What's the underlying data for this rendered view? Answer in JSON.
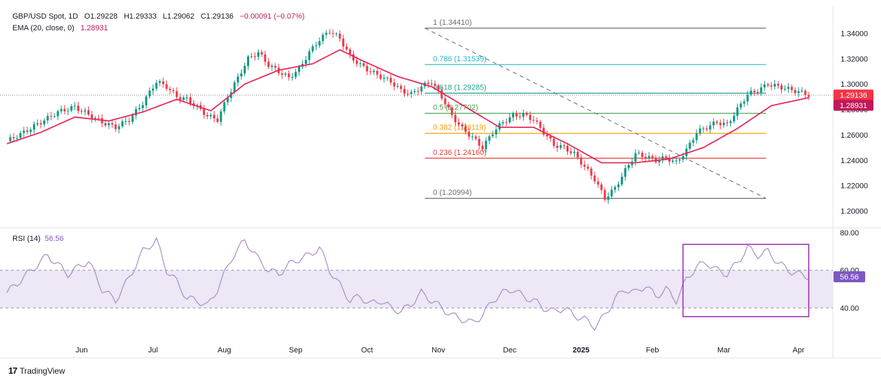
{
  "header": {
    "symbol": "GBP/USD Spot, 1D",
    "open": "O1.29228",
    "high": "H1.29333",
    "low": "L1.29062",
    "close": "C1.29136",
    "change": "−0.00091 (−0.07%)",
    "ema_label": "EMA (20, close, 0)",
    "ema_value": "1.28931"
  },
  "rsi": {
    "label": "RSI (14)",
    "value": "56.56"
  },
  "brand": "TradingView",
  "colors": {
    "up": "#089981",
    "down": "#f23645",
    "ema": "#e5285a",
    "rsi": "#a98bc6",
    "rsi_band": "#ede7f6",
    "rsi_box": "#9c27b0",
    "fib_0786": "#22b8c8",
    "fib_0618": "#22a390",
    "fib_05": "#43a047",
    "fib_0382": "#f5a000",
    "fib_0236": "#e53935",
    "fib_extreme": "#6d6d6d"
  },
  "chart_data": {
    "type": "candlestick",
    "price_axis": {
      "min": 1.19,
      "max": 1.35,
      "ticks": [
        "1.20000",
        "1.22000",
        "1.24000",
        "1.26000",
        "1.28000",
        "1.30000",
        "1.32000",
        "1.34000"
      ]
    },
    "last_price": "1.29136",
    "ema_last": "1.28931",
    "x_axis_labels": [
      "Jun",
      "Jul",
      "Aug",
      "Sep",
      "Oct",
      "Nov",
      "Dec",
      "2025",
      "Feb",
      "Mar",
      "Apr"
    ],
    "fibonacci": [
      {
        "level": "1",
        "price": 1.3441,
        "label": "1 (1.34410)"
      },
      {
        "level": "0.786",
        "price": 1.31539,
        "label": "0.786 (1.31539)"
      },
      {
        "level": "0.618",
        "price": 1.29285,
        "label": "0.618 (1.29285)"
      },
      {
        "level": "0.5",
        "price": 1.27702,
        "label": "0.5 (1.27702)"
      },
      {
        "level": "0.382",
        "price": 1.26119,
        "label": "0.382 (1.26119)"
      },
      {
        "level": "0.236",
        "price": 1.2416,
        "label": "0.236 (1.24160)"
      },
      {
        "level": "0",
        "price": 1.20994,
        "label": "0 (1.20994)"
      }
    ],
    "price_path": [
      [
        0,
        1.255
      ],
      [
        5,
        1.262
      ],
      [
        10,
        1.27
      ],
      [
        15,
        1.278
      ],
      [
        20,
        1.282
      ],
      [
        24,
        1.276
      ],
      [
        28,
        1.27
      ],
      [
        32,
        1.266
      ],
      [
        36,
        1.272
      ],
      [
        40,
        1.285
      ],
      [
        44,
        1.302
      ],
      [
        47,
        1.298
      ],
      [
        50,
        1.29
      ],
      [
        53,
        1.288
      ],
      [
        56,
        1.282
      ],
      [
        59,
        1.275
      ],
      [
        62,
        1.272
      ],
      [
        65,
        1.29
      ],
      [
        68,
        1.305
      ],
      [
        71,
        1.32
      ],
      [
        74,
        1.325
      ],
      [
        77,
        1.315
      ],
      [
        80,
        1.31
      ],
      [
        83,
        1.305
      ],
      [
        86,
        1.312
      ],
      [
        89,
        1.325
      ],
      [
        92,
        1.335
      ],
      [
        95,
        1.342
      ],
      [
        98,
        1.336
      ],
      [
        101,
        1.322
      ],
      [
        104,
        1.315
      ],
      [
        107,
        1.31
      ],
      [
        110,
        1.306
      ],
      [
        113,
        1.302
      ],
      [
        116,
        1.295
      ],
      [
        119,
        1.292
      ],
      [
        122,
        1.298
      ],
      [
        125,
        1.302
      ],
      [
        128,
        1.29
      ],
      [
        131,
        1.275
      ],
      [
        134,
        1.265
      ],
      [
        137,
        1.258
      ],
      [
        140,
        1.25
      ],
      [
        143,
        1.262
      ],
      [
        146,
        1.27
      ],
      [
        149,
        1.275
      ],
      [
        152,
        1.276
      ],
      [
        155,
        1.272
      ],
      [
        158,
        1.262
      ],
      [
        161,
        1.252
      ],
      [
        164,
        1.25
      ],
      [
        167,
        1.245
      ],
      [
        170,
        1.235
      ],
      [
        173,
        1.225
      ],
      [
        176,
        1.21
      ],
      [
        179,
        1.218
      ],
      [
        182,
        1.232
      ],
      [
        185,
        1.245
      ],
      [
        188,
        1.243
      ],
      [
        191,
        1.24
      ],
      [
        194,
        1.242
      ],
      [
        197,
        1.238
      ],
      [
        200,
        1.248
      ],
      [
        203,
        1.262
      ],
      [
        206,
        1.266
      ],
      [
        209,
        1.27
      ],
      [
        212,
        1.268
      ],
      [
        215,
        1.28
      ],
      [
        218,
        1.292
      ],
      [
        221,
        1.295
      ],
      [
        224,
        1.3
      ],
      [
        227,
        1.298
      ],
      [
        230,
        1.296
      ],
      [
        233,
        1.294
      ],
      [
        236,
        1.2914
      ]
    ],
    "ema_path": [
      [
        0,
        1.253
      ],
      [
        10,
        1.262
      ],
      [
        20,
        1.274
      ],
      [
        30,
        1.271
      ],
      [
        40,
        1.278
      ],
      [
        50,
        1.288
      ],
      [
        60,
        1.279
      ],
      [
        70,
        1.3
      ],
      [
        80,
        1.311
      ],
      [
        90,
        1.316
      ],
      [
        98,
        1.327
      ],
      [
        105,
        1.318
      ],
      [
        115,
        1.306
      ],
      [
        125,
        1.298
      ],
      [
        135,
        1.282
      ],
      [
        145,
        1.266
      ],
      [
        155,
        1.266
      ],
      [
        165,
        1.253
      ],
      [
        175,
        1.238
      ],
      [
        185,
        1.238
      ],
      [
        195,
        1.241
      ],
      [
        205,
        1.25
      ],
      [
        215,
        1.265
      ],
      [
        225,
        1.283
      ],
      [
        236,
        1.2893
      ]
    ],
    "rsi_axis": {
      "min": 20,
      "max": 80,
      "ticks": [
        "40.00",
        "60.00",
        "80.00"
      ],
      "band": [
        40,
        60
      ]
    },
    "rsi_path": [
      [
        0,
        48
      ],
      [
        6,
        58
      ],
      [
        12,
        68
      ],
      [
        18,
        58
      ],
      [
        24,
        65
      ],
      [
        28,
        50
      ],
      [
        32,
        44
      ],
      [
        36,
        56
      ],
      [
        40,
        70
      ],
      [
        44,
        76
      ],
      [
        47,
        60
      ],
      [
        50,
        54
      ],
      [
        53,
        45
      ],
      [
        56,
        44
      ],
      [
        59,
        41
      ],
      [
        62,
        50
      ],
      [
        66,
        66
      ],
      [
        70,
        76
      ],
      [
        74,
        66
      ],
      [
        77,
        60
      ],
      [
        80,
        58
      ],
      [
        83,
        63
      ],
      [
        86,
        66
      ],
      [
        89,
        68
      ],
      [
        92,
        72
      ],
      [
        95,
        60
      ],
      [
        98,
        52
      ],
      [
        101,
        44
      ],
      [
        104,
        46
      ],
      [
        107,
        42
      ],
      [
        110,
        44
      ],
      [
        113,
        40
      ],
      [
        116,
        38
      ],
      [
        119,
        42
      ],
      [
        122,
        48
      ],
      [
        125,
        44
      ],
      [
        128,
        40
      ],
      [
        131,
        36
      ],
      [
        134,
        34
      ],
      [
        137,
        32
      ],
      [
        140,
        36
      ],
      [
        143,
        44
      ],
      [
        146,
        48
      ],
      [
        149,
        50
      ],
      [
        152,
        46
      ],
      [
        155,
        44
      ],
      [
        158,
        40
      ],
      [
        161,
        38
      ],
      [
        164,
        40
      ],
      [
        167,
        36
      ],
      [
        170,
        34
      ],
      [
        173,
        30
      ],
      [
        176,
        36
      ],
      [
        179,
        45
      ],
      [
        182,
        50
      ],
      [
        185,
        48
      ],
      [
        188,
        52
      ],
      [
        191,
        46
      ],
      [
        194,
        50
      ],
      [
        197,
        44
      ],
      [
        200,
        55
      ],
      [
        203,
        62
      ],
      [
        206,
        64
      ],
      [
        209,
        60
      ],
      [
        212,
        58
      ],
      [
        215,
        64
      ],
      [
        218,
        72
      ],
      [
        221,
        68
      ],
      [
        224,
        70
      ],
      [
        227,
        64
      ],
      [
        230,
        60
      ],
      [
        233,
        58
      ],
      [
        236,
        56.56
      ]
    ]
  }
}
